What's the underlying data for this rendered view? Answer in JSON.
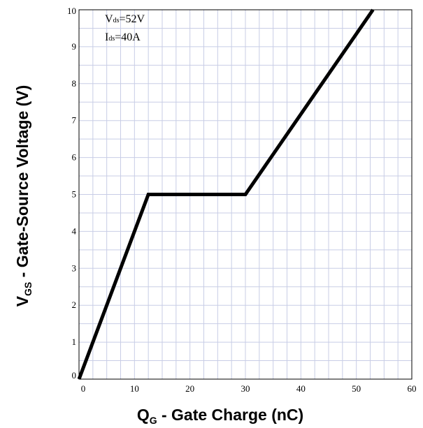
{
  "chart_data": {
    "type": "line",
    "xlabel": {
      "main": "Q",
      "sub": "G",
      "rest": " - Gate Charge (nC)"
    },
    "ylabel": {
      "main": "V",
      "sub": "GS",
      "rest": " - Gate-Source Voltage (V)"
    },
    "xlim": [
      0,
      60
    ],
    "ylim": [
      0,
      10
    ],
    "x_ticks": [
      0,
      10,
      20,
      30,
      40,
      50,
      60
    ],
    "y_ticks": [
      0,
      1,
      2,
      3,
      4,
      5,
      6,
      7,
      8,
      9,
      10
    ],
    "x_minor_step": 2.5,
    "y_minor_step": 0.5,
    "grid": true,
    "annotations": [
      {
        "main": "V",
        "sub": "ds",
        "rest": "=52V"
      },
      {
        "main": "I",
        "sub": "ds",
        "rest": "=40A"
      }
    ],
    "series": [
      {
        "x": [
          0,
          12.5,
          30,
          53
        ],
        "y": [
          0,
          5,
          5,
          10
        ]
      }
    ],
    "line_color": "#000000",
    "grid_color": "#c8cde6"
  }
}
